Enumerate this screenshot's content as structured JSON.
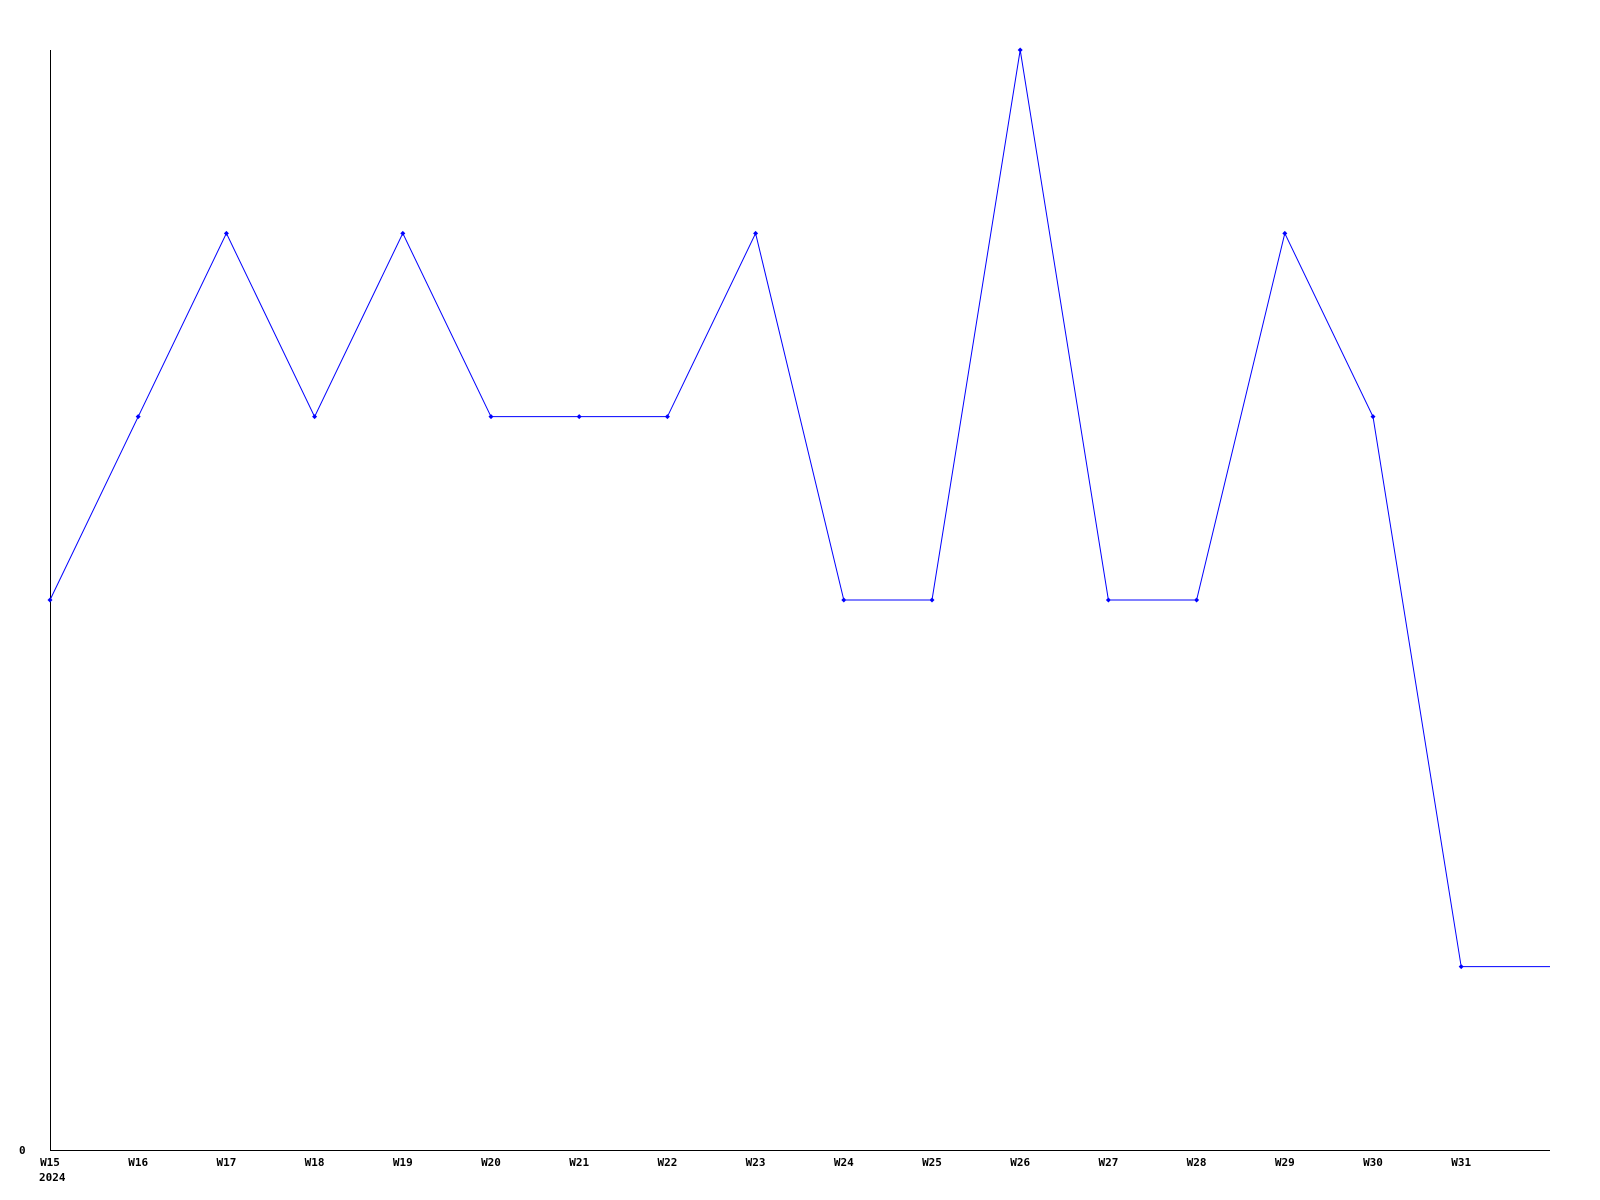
{
  "chart_data": {
    "type": "line",
    "title": "",
    "xlabel": "",
    "ylabel": "",
    "categories": [
      "W15",
      "W16",
      "W17",
      "W18",
      "W19",
      "W20",
      "W21",
      "W22",
      "W23",
      "W24",
      "W25",
      "W26",
      "W27",
      "W28",
      "W29",
      "W30",
      "W31"
    ],
    "year_label": "2024",
    "series": [
      {
        "values": [
          3,
          4,
          5,
          4,
          5,
          4,
          4,
          4,
          5,
          3,
          3,
          6,
          3,
          3,
          5,
          4,
          1
        ],
        "color": "#0000ff"
      }
    ],
    "ylim": [
      0,
      6
    ],
    "y_tick_labels": [
      "0"
    ],
    "grid": false,
    "line_extends_past_last_point": true
  }
}
